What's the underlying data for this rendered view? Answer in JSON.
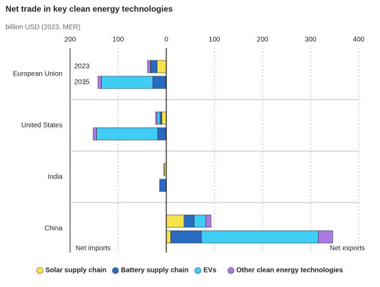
{
  "chart_data": {
    "type": "bar",
    "orientation": "horizontal",
    "stacked": true,
    "title": "Net trade in key clean energy technologies",
    "subtitle": "billion USD (2023, MER)",
    "groups": [
      "European Union",
      "United States",
      "India",
      "China"
    ],
    "years": [
      "2023",
      "2035"
    ],
    "series": [
      {
        "name": "Solar supply chain",
        "color": "#f7e34a",
        "values": [
          -19,
          -1,
          -9,
          -1,
          -4,
          0,
          37,
          9
        ]
      },
      {
        "name": "Battery supply chain",
        "color": "#2a6bc2",
        "values": [
          -13,
          -27,
          -4,
          -17,
          -1,
          -14,
          21,
          64
        ]
      },
      {
        "name": "EVs",
        "color": "#40cdf5",
        "values": [
          -1,
          -107,
          -6,
          -127,
          0,
          0,
          24,
          243
        ]
      },
      {
        "name": "Other clean energy technologies",
        "color": "#a97ae0",
        "values": [
          -6,
          -7,
          -3,
          -7,
          0,
          0,
          11,
          30
        ]
      }
    ],
    "xlim": [
      -200,
      400
    ],
    "xticks": [
      {
        "value": -200,
        "label": "200"
      },
      {
        "value": -100,
        "label": "100"
      },
      0,
      100,
      200,
      300,
      400
    ],
    "grid": true,
    "annotations": [
      "Net imports",
      "Net exports"
    ]
  }
}
